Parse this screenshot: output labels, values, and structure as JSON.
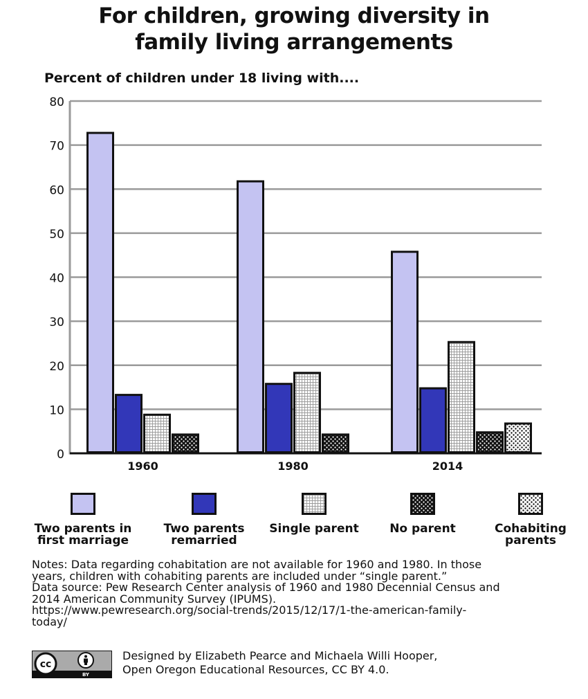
{
  "title_lines": [
    "For children, growing diversity in",
    "family living arrangements"
  ],
  "subtitle": "Percent of children under 18 living with....",
  "colors": {
    "first_marriage": "#c4c3f2",
    "remarried": "#3237b8",
    "grid": "#9a9a9a",
    "outline": "#111111"
  },
  "chart_data": {
    "type": "bar",
    "title": "For children, growing diversity in family living arrangements",
    "ylabel": "Percent of children under 18 living with....",
    "xlabel": "",
    "ylim": [
      0,
      80
    ],
    "yticks": [
      0,
      10,
      20,
      30,
      40,
      50,
      60,
      70,
      80
    ],
    "grid": true,
    "legend_position": "bottom",
    "categories": [
      "1960",
      "1980",
      "2014"
    ],
    "series": [
      {
        "name": "Two parents in first marriage",
        "pattern": "solid-lavender",
        "values": [
          73,
          62,
          46
        ]
      },
      {
        "name": "Two parents remarried",
        "pattern": "solid-blue",
        "values": [
          13.5,
          16,
          15
        ]
      },
      {
        "name": "Single parent",
        "pattern": "fine-grid",
        "values": [
          9,
          18.5,
          25.5
        ]
      },
      {
        "name": "No parent",
        "pattern": "dark-dots",
        "values": [
          4.5,
          4.5,
          5
        ]
      },
      {
        "name": "Cohabiting parents",
        "pattern": "light-dots",
        "values": [
          null,
          null,
          7
        ]
      }
    ]
  },
  "legend": [
    {
      "line1": "Two parents in",
      "line2": "first marriage",
      "pattern": "solid-lavender"
    },
    {
      "line1": "Two parents",
      "line2": "remarried",
      "pattern": "solid-blue"
    },
    {
      "line1": "Single parent",
      "line2": "",
      "pattern": "fine-grid"
    },
    {
      "line1": "No parent",
      "line2": "",
      "pattern": "dark-dots"
    },
    {
      "line1": "Cohabiting",
      "line2": "parents",
      "pattern": "light-dots"
    }
  ],
  "notes": {
    "line1": "Notes: Data regarding cohabitation are not available for 1960 and 1980. In those",
    "line2": "years, children with cohabiting parents are included under  “single parent.”",
    "line3": "Data source: Pew Research Center analysis of 1960 and 1980 Decennial Census and",
    "line4": "2014 American Community Survey (IPUMS).",
    "line5": "https://www.pewresearch.org/social-trends/2015/12/17/1-the-american-family-",
    "line6": "today/"
  },
  "credit": {
    "line1": "Designed by Elizabeth Pearce and Michaela Willi Hooper,",
    "line2": "Open Oregon Educational Resources, CC BY 4.0.",
    "badge_cc": "cc",
    "badge_by": "BY",
    "badge_icon": "person-icon"
  }
}
